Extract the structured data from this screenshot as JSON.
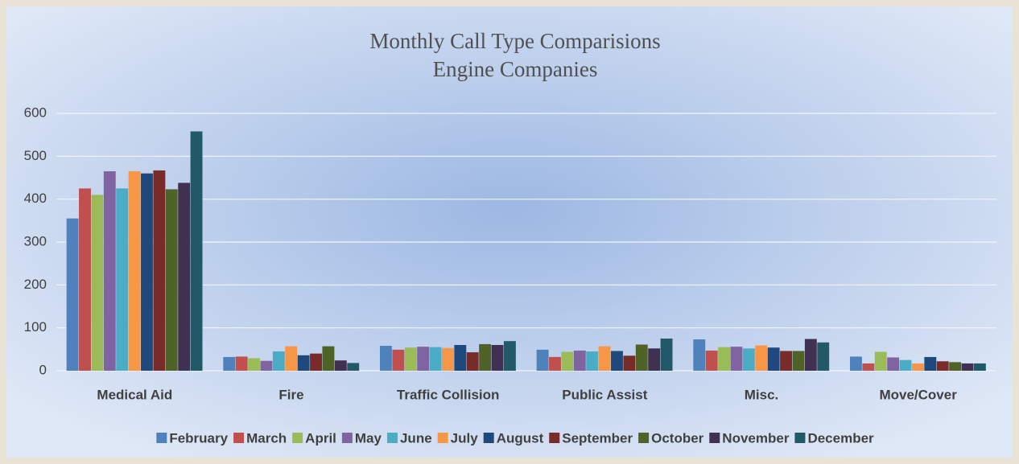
{
  "chart_data": {
    "type": "bar",
    "title": "Monthly Call Type Comparisions",
    "subtitle": "Engine Companies",
    "categories": [
      "Medical Aid",
      "Fire",
      "Traffic Collision",
      "Public Assist",
      "Misc.",
      "Move/Cover"
    ],
    "series": [
      {
        "name": "February",
        "color": "#4f81bd",
        "values": [
          355,
          32,
          58,
          49,
          73,
          33
        ]
      },
      {
        "name": "March",
        "color": "#c0504d",
        "values": [
          425,
          33,
          49,
          32,
          47,
          17
        ]
      },
      {
        "name": "April",
        "color": "#9bbb59",
        "values": [
          410,
          29,
          54,
          44,
          55,
          44
        ]
      },
      {
        "name": "May",
        "color": "#8064a2",
        "values": [
          465,
          23,
          56,
          47,
          56,
          31
        ]
      },
      {
        "name": "June",
        "color": "#4bacc6",
        "values": [
          425,
          45,
          55,
          45,
          52,
          25
        ]
      },
      {
        "name": "July",
        "color": "#f79646",
        "values": [
          465,
          57,
          53,
          57,
          59,
          17
        ]
      },
      {
        "name": "August",
        "color": "#1f497d",
        "values": [
          460,
          36,
          60,
          46,
          54,
          32
        ]
      },
      {
        "name": "September",
        "color": "#772c2a",
        "values": [
          467,
          40,
          43,
          35,
          46,
          22
        ]
      },
      {
        "name": "October",
        "color": "#4f6228",
        "values": [
          423,
          57,
          62,
          61,
          46,
          20
        ]
      },
      {
        "name": "November",
        "color": "#403152",
        "values": [
          438,
          24,
          60,
          52,
          74,
          17
        ]
      },
      {
        "name": "December",
        "color": "#215968",
        "values": [
          558,
          18,
          69,
          75,
          66,
          17
        ]
      }
    ],
    "ylim": [
      0,
      600
    ],
    "yticks": [
      0,
      100,
      200,
      300,
      400,
      500,
      600
    ],
    "grid": true,
    "legend": "bottom"
  }
}
